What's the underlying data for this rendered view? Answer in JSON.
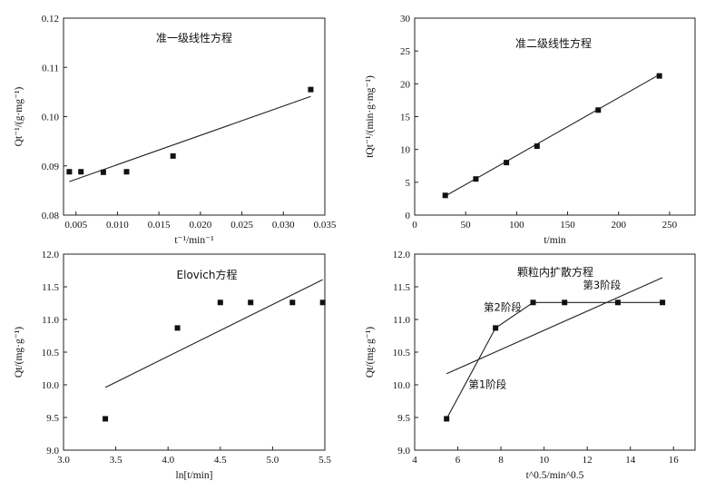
{
  "chart_data": [
    {
      "type": "scatter",
      "title": "准一级线性方程",
      "xlabel": "t⁻¹/min⁻¹",
      "ylabel": "Qt⁻¹/(g·mg⁻¹)",
      "xlim": [
        0.0035,
        0.035
      ],
      "ylim": [
        0.08,
        0.12
      ],
      "xticks": [
        "0.005",
        "0.010",
        "0.015",
        "0.020",
        "0.025",
        "0.030",
        "0.035"
      ],
      "yticks": [
        "0.08",
        "0.09",
        "0.10",
        "0.11",
        "0.12"
      ],
      "series": [
        {
          "x": [
            0.0042,
            0.0056,
            0.0083,
            0.0111,
            0.0167,
            0.0333
          ],
          "y": [
            0.0888,
            0.0888,
            0.0887,
            0.0888,
            0.092,
            0.1055
          ]
        }
      ],
      "fit_line": {
        "x": [
          0.0042,
          0.0333
        ],
        "y": [
          0.0868,
          0.1041
        ]
      }
    },
    {
      "type": "scatter",
      "title": "准二级线性方程",
      "xlabel": "t/min",
      "ylabel": "tQt⁻¹/(min·g·mg⁻¹)",
      "xlim": [
        0,
        275
      ],
      "ylim": [
        0,
        30
      ],
      "xticks": [
        "0",
        "50",
        "100",
        "150",
        "200",
        "250"
      ],
      "yticks": [
        "0",
        "5",
        "10",
        "15",
        "20",
        "25",
        "30"
      ],
      "series": [
        {
          "x": [
            30,
            60,
            90,
            120,
            180,
            240
          ],
          "y": [
            3.0,
            5.5,
            8.0,
            10.5,
            16.0,
            21.2
          ]
        }
      ],
      "fit_line": {
        "x": [
          30,
          240
        ],
        "y": [
          2.9,
          21.4
        ]
      }
    },
    {
      "type": "scatter",
      "title": "Elovich方程",
      "xlabel": "ln[t/min]",
      "ylabel": "Qt/(mg·g⁻¹)",
      "xlim": [
        3.0,
        5.5
      ],
      "ylim": [
        9.0,
        12.0
      ],
      "xticks": [
        "3.0",
        "3.5",
        "4.0",
        "4.5",
        "5.0",
        "5.5"
      ],
      "yticks": [
        "9.0",
        "9.5",
        "10.0",
        "10.5",
        "11.0",
        "11.5",
        "12.0"
      ],
      "series": [
        {
          "x": [
            3.4,
            4.09,
            4.5,
            4.79,
            5.19,
            5.48
          ],
          "y": [
            9.48,
            10.87,
            11.26,
            11.26,
            11.26,
            11.26
          ]
        }
      ],
      "fit_line": {
        "x": [
          3.4,
          5.48
        ],
        "y": [
          9.96,
          11.61
        ]
      }
    },
    {
      "type": "line",
      "title": "颗粒内扩散方程",
      "xlabel": "t^0.5/min^0.5",
      "ylabel": "Qt/(mg·g⁻¹)",
      "xlim": [
        4,
        17
      ],
      "ylim": [
        9.0,
        12.0
      ],
      "xticks": [
        "4",
        "6",
        "8",
        "10",
        "12",
        "14",
        "16"
      ],
      "yticks": [
        "9.0",
        "9.5",
        "10.0",
        "10.5",
        "11.0",
        "11.5",
        "12.0"
      ],
      "series": [
        {
          "x": [
            5.48,
            7.75,
            9.49,
            10.95,
            13.42,
            15.49
          ],
          "y": [
            9.48,
            10.87,
            11.26,
            11.26,
            11.26,
            11.26
          ]
        }
      ],
      "fit_line": {
        "x": [
          5.48,
          15.49
        ],
        "y": [
          10.17,
          11.64
        ]
      },
      "annotations": [
        {
          "text": "第1阶段",
          "x": 6.5,
          "y": 9.95
        },
        {
          "text": "第2阶段",
          "x": 7.2,
          "y": 11.13
        },
        {
          "text": "第3阶段",
          "x": 11.8,
          "y": 11.47
        }
      ]
    }
  ]
}
